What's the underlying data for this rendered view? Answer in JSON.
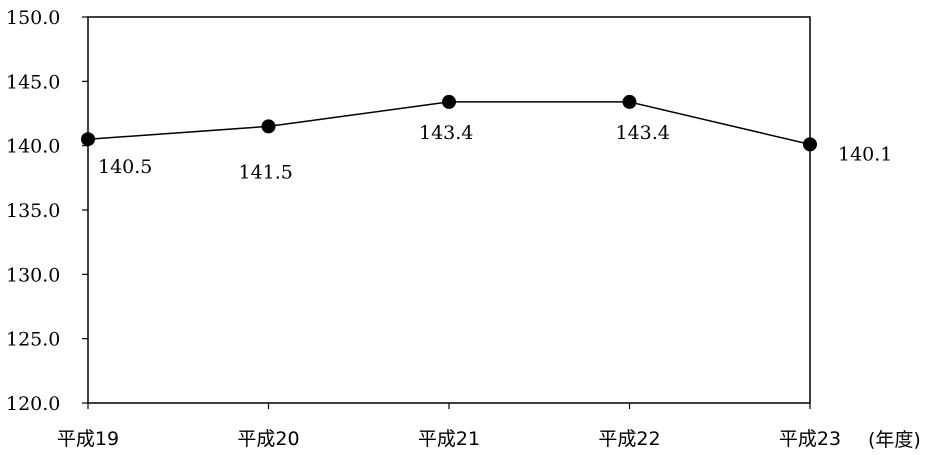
{
  "chart_data": {
    "type": "line",
    "categories": [
      "平成19",
      "平成20",
      "平成21",
      "平成22",
      "平成23"
    ],
    "series": [
      {
        "values": [
          140.5,
          141.5,
          143.4,
          143.4,
          140.1
        ]
      }
    ],
    "data_labels": [
      "140.5",
      "141.5",
      "143.4",
      "143.4",
      "140.1"
    ],
    "y_ticks": [
      "120.0",
      "125.0",
      "130.0",
      "135.0",
      "140.0",
      "145.0",
      "150.0"
    ],
    "ylim": [
      120,
      150
    ],
    "x_unit": "(年度)",
    "grid": false,
    "legend": "none",
    "colors": {
      "line": "#000000",
      "marker": "#000000",
      "frame": "#000000"
    }
  }
}
